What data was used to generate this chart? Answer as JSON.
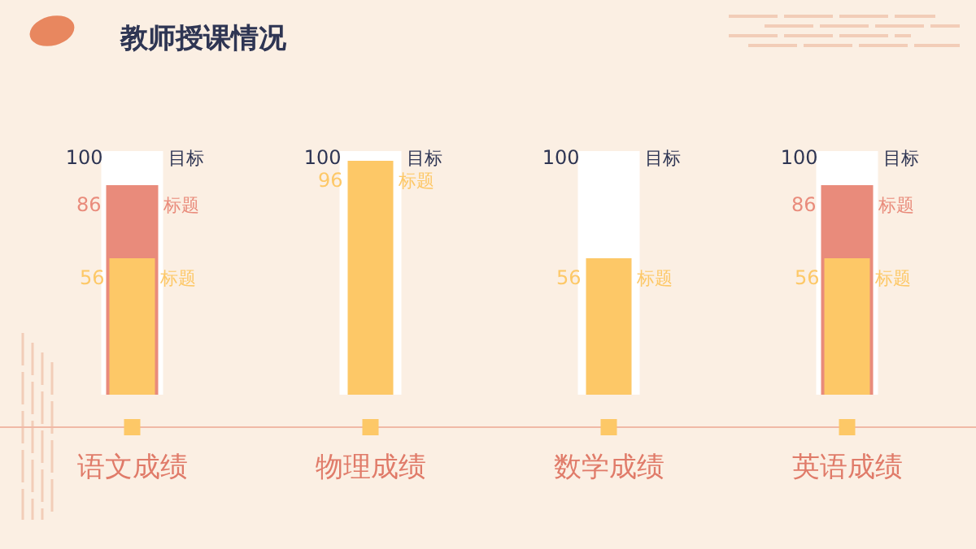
{
  "chart_data": {
    "type": "bar",
    "title": "教师授课情况",
    "categories": [
      "语文成绩",
      "物理成绩",
      "数学成绩",
      "英语成绩"
    ],
    "series": [
      {
        "name": "目标",
        "color": "#ffffff",
        "values": [
          100,
          100,
          100,
          100
        ]
      },
      {
        "name": "标题",
        "color": "#e98b7b",
        "values": [
          86,
          null,
          null,
          86
        ]
      },
      {
        "name": "标题",
        "color": "#fdc867",
        "values": [
          56,
          96,
          56,
          56
        ]
      }
    ],
    "data_labels": true
  }
}
